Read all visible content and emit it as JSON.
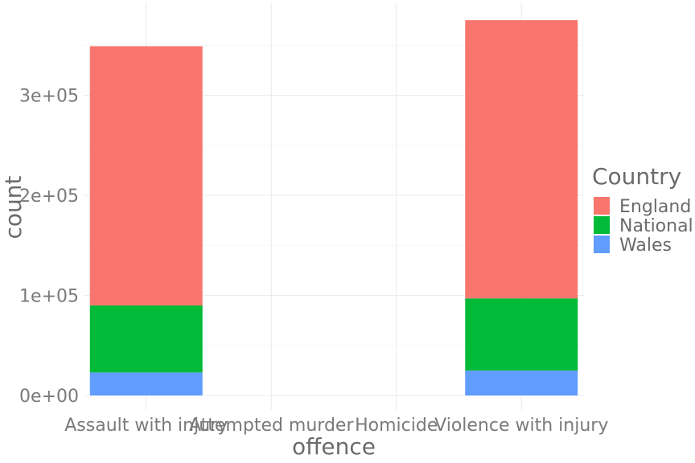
{
  "chart_data": {
    "type": "bar",
    "stacked": true,
    "categories": [
      "Assault with injury",
      "Attempted murder",
      "Homicide",
      "Violence with injury"
    ],
    "series": [
      {
        "name": "England",
        "color": "#F8766D",
        "values": [
          259000,
          0,
          0,
          278000
        ]
      },
      {
        "name": "National",
        "color": "#00BA38",
        "values": [
          67000,
          0,
          0,
          72000
        ]
      },
      {
        "name": "Wales",
        "color": "#619CFF",
        "values": [
          23000,
          0,
          0,
          25000
        ]
      }
    ],
    "xlabel": "offence",
    "ylabel": "count",
    "ylim": [
      0,
      390000
    ],
    "yticks": [
      0,
      100000,
      200000,
      300000
    ],
    "ytick_labels": [
      "0e+00",
      "1e+05",
      "2e+05",
      "3e+05"
    ],
    "grid": true,
    "legend": {
      "title": "Country",
      "position": "right"
    }
  }
}
